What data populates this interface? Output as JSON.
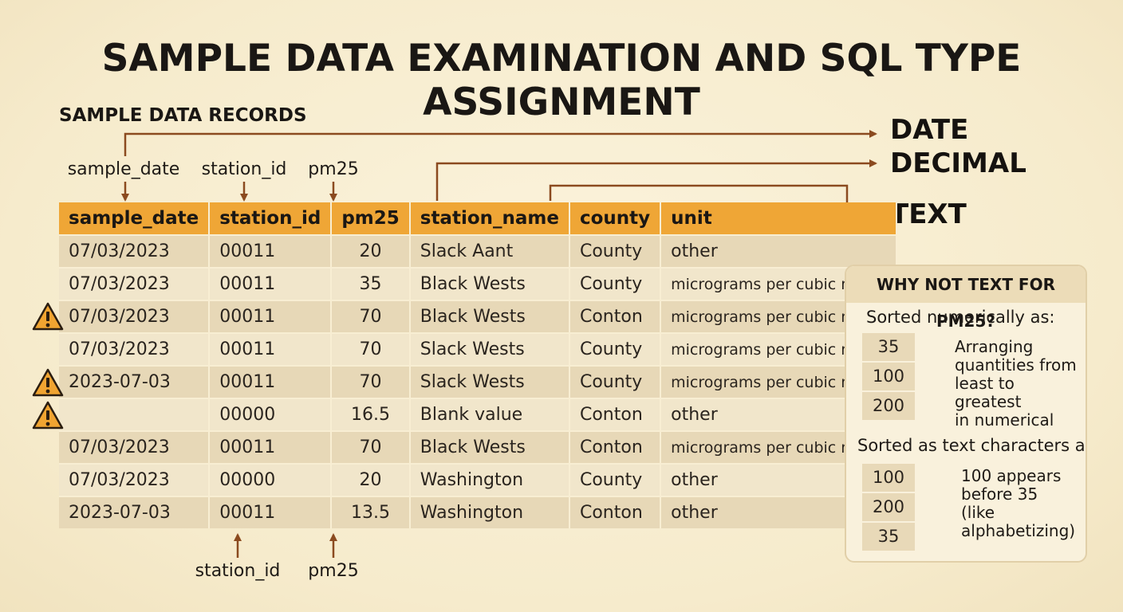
{
  "title": "SAMPLE DATA EXAMINATION AND SQL TYPE ASSIGNMENT",
  "section_label": "SAMPLE DATA RECORDS",
  "top_labels": [
    "sample_date",
    "station_id",
    "pm25"
  ],
  "bottom_labels": [
    "station_id",
    "pm25"
  ],
  "type_labels": [
    "DATE",
    "DECIMAL",
    "TEXT"
  ],
  "table": {
    "headers": [
      "sample_date",
      "station_id",
      "pm25",
      "station_name",
      "county",
      "unit"
    ],
    "rows": [
      [
        "07/03/2023",
        "00011",
        "20",
        "Slack Aant",
        "County",
        "other"
      ],
      [
        "07/03/2023",
        "00011",
        "35",
        "Black Wests",
        "County",
        "micrograms per cubic meter"
      ],
      [
        "07/03/2023",
        "00011",
        "70",
        "Black Wests",
        "Conton",
        "micrograms per cubic meter"
      ],
      [
        "07/03/2023",
        "00011",
        "70",
        "Slack Wests",
        "County",
        "micrograms per cubic meter"
      ],
      [
        "2023-07-03",
        "00011",
        "70",
        "Slack Wests",
        "County",
        "micrograms per cubic meter"
      ],
      [
        "",
        "00000",
        "16.5",
        "Blank value",
        "Conton",
        "other"
      ],
      [
        "07/03/2023",
        "00011",
        "70",
        "Black Wests",
        "Conton",
        "micrograms per cubic meter"
      ],
      [
        "07/03/2023",
        "00000",
        "20",
        "Washington",
        "County",
        "other"
      ],
      [
        "2023-07-03",
        "00011",
        "13.5",
        "Washington",
        "Conton",
        "other"
      ]
    ],
    "warning_rows": [
      2,
      4,
      5
    ]
  },
  "panel": {
    "title": "WHY NOT TEXT FOR PM25?",
    "numeric_heading": "Sorted numerically as:",
    "numeric_values": [
      "35",
      "100",
      "200"
    ],
    "numeric_note": [
      "Arranging",
      "quantities from",
      "least to greatest",
      "in numerical"
    ],
    "text_heading": "Sorted as text characters as:",
    "text_values": [
      "100",
      "200",
      "35"
    ],
    "text_note": [
      "100 appears",
      "before 35",
      "(like",
      "alphabetizing)"
    ]
  },
  "colors": {
    "header": "#efa636",
    "row_dark": "#e7d8b7",
    "row_light": "#f1e6cb",
    "arrow": "#8b4a1f",
    "warning": "#f0a431"
  },
  "icons": [
    "warning-icon"
  ]
}
